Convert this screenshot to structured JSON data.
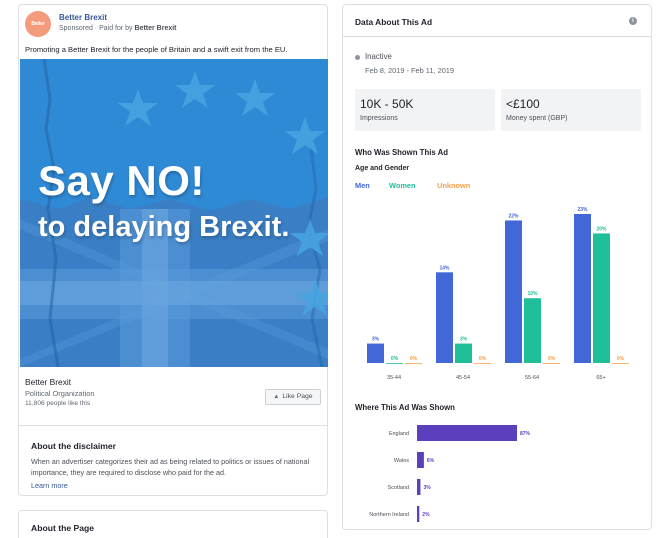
{
  "ad": {
    "page_name": "Better Brexit",
    "logo_text": "Better Brexit",
    "sponsored_label": "Sponsored",
    "paid_for_prefix": " · Paid for by ",
    "paid_for_name": "Better Brexit",
    "body_text": "Promoting a Better Brexit for the people of Britain and a swift exit from the EU.",
    "creative_headline_1": "Say NO!",
    "creative_headline_2": "to delaying Brexit.",
    "page_info": {
      "name": "Better Brexit",
      "category": "Political Organization",
      "likes": "11,806 people like this",
      "like_button": "Like Page",
      "like_icon": "thumbs-up-icon"
    },
    "disclaimer": {
      "title": "About the disclaimer",
      "body": "When an advertiser categorizes their ad as being related to politics or issues of national importance, they are required to disclose who paid for the ad.",
      "link": "Learn more"
    },
    "about_page_title": "About the Page"
  },
  "data_panel": {
    "title": "Data About This Ad",
    "info_icon": "info-icon",
    "status": "Inactive",
    "date_range": "Feb 8, 2019 - Feb 11, 2019",
    "impressions": {
      "value": "10K - 50K",
      "label": "Impressions"
    },
    "spend": {
      "value": "<£100",
      "label": "Money spent (GBP)"
    },
    "who_title": "Who Was Shown This Ad",
    "age_gender_title": "Age and Gender",
    "legend": {
      "men": "Men",
      "women": "Women",
      "unknown": "Unknown"
    },
    "where_title": "Where This Ad Was Shown"
  },
  "colors": {
    "men": "#4267d6",
    "women": "#1fbf9a",
    "unknown": "#f5a04a",
    "region": "#5b3fbd",
    "creative_blue": "#2b84d0"
  },
  "chart_data": [
    {
      "type": "bar",
      "categories": [
        "35-44",
        "45-54",
        "55-64",
        "65+"
      ],
      "series": [
        {
          "name": "Men",
          "values": [
            3,
            14,
            22,
            23
          ]
        },
        {
          "name": "Women",
          "values": [
            0,
            3,
            10,
            20
          ]
        },
        {
          "name": "Unknown",
          "values": [
            0,
            0,
            0,
            0
          ]
        }
      ],
      "value_suffix": "%",
      "ylim": [
        0,
        23
      ]
    },
    {
      "type": "bar",
      "orientation": "horizontal",
      "categories": [
        "England",
        "Wales",
        "Scotland",
        "Northern Ireland"
      ],
      "values": [
        87,
        6,
        3,
        2
      ],
      "value_suffix": "%",
      "xlim": [
        0,
        87
      ]
    }
  ]
}
